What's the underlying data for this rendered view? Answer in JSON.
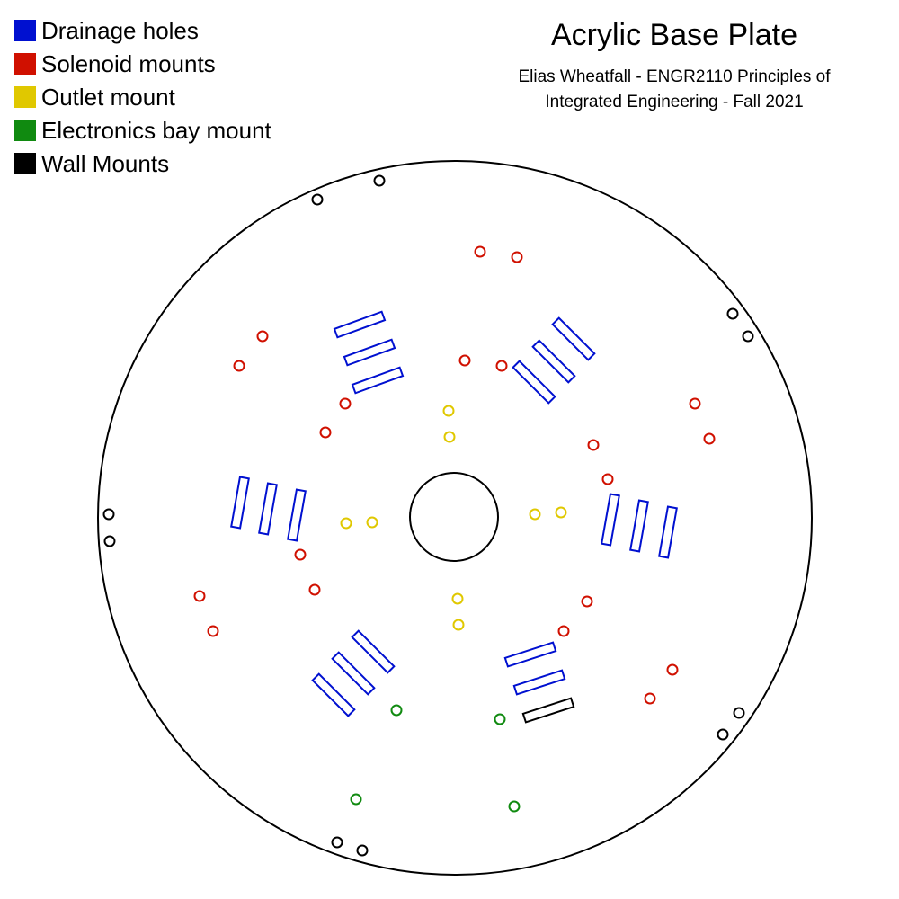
{
  "legend": [
    {
      "label": "Drainage holes",
      "color": "#0010d0"
    },
    {
      "label": "Solenoid mounts",
      "color": "#d01000"
    },
    {
      "label": "Outlet mount",
      "color": "#e0c800"
    },
    {
      "label": "Electronics bay mount",
      "color": "#108a10"
    },
    {
      "label": "Wall Mounts",
      "color": "#000000"
    }
  ],
  "title": "Acrylic Base Plate",
  "subtitle_line1": "Elias Wheatfall - ENGR2110 Principles of",
  "subtitle_line2": "Integrated Engineering - Fall 2021"
}
